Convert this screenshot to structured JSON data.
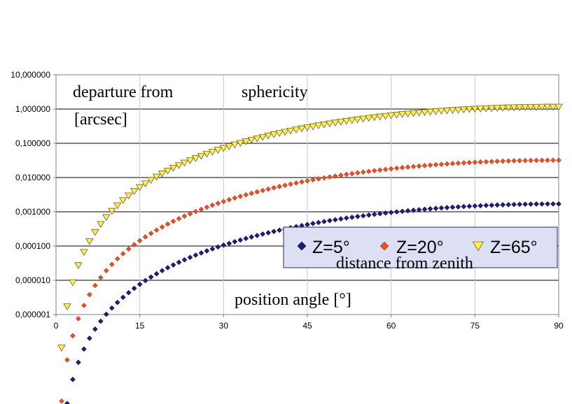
{
  "chart_data": {
    "type": "scatter",
    "scale": "log-y",
    "x": {
      "min": 0,
      "max": 90,
      "ticks": [
        0,
        15,
        30,
        45,
        60,
        75,
        90
      ],
      "tick_labels": [
        "0",
        "15",
        "30",
        "45",
        "60",
        "75",
        "90"
      ]
    },
    "y": {
      "min": 1e-06,
      "max": 10,
      "ticks": [
        10,
        1,
        0.1,
        0.01,
        0.001,
        0.0001,
        1e-05,
        1e-06
      ],
      "tick_labels": [
        "10,000000",
        "1,000000",
        "0,100000",
        "0,010000",
        "0,001000",
        "0,000100",
        "0,000010",
        "0,000001"
      ]
    },
    "annotations": {
      "ylabel_line1": "departure from",
      "ylabel_line1b": "sphericity",
      "ylabel_line2": "[arcsec]",
      "xlabel": "position angle [°]"
    },
    "legend": {
      "title": "distance from zenith",
      "placement": "lower-right"
    },
    "series": [
      {
        "name": "Z=5°",
        "marker": "diamond",
        "color": "#1f1f7a",
        "stroke": "#0d0d4a",
        "x_start": 2,
        "x_end": 90,
        "value_at_90": 0.0017
      },
      {
        "name": "Z=20°",
        "marker": "diamond",
        "color": "#e8522a",
        "stroke": "#b83a18",
        "x_start": 1,
        "x_end": 90,
        "value_at_90": 0.032
      },
      {
        "name": "Z=65°",
        "marker": "triangle-down",
        "color": "#ffee55",
        "stroke": "#6b6020",
        "x_start": 1,
        "x_end": 90,
        "value_at_90": 1.15
      }
    ]
  }
}
